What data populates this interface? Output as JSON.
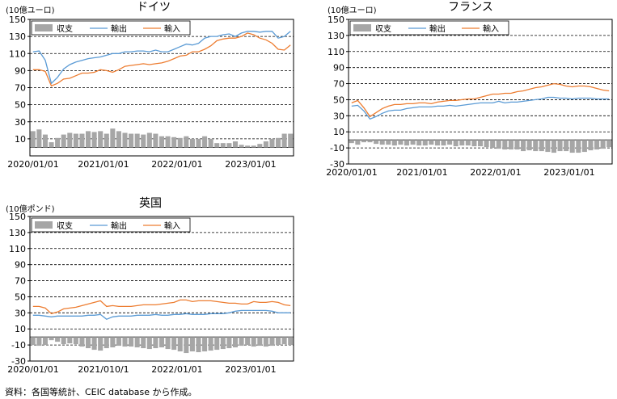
{
  "source": "資料：各国等統計、CEIC database から作成。",
  "colors": {
    "bar": "#a6a6a6",
    "export": "#5b9bd5",
    "import": "#ed7d31",
    "axis": "#000000"
  },
  "chart_data": [
    {
      "type": "bar+line",
      "title": "ドイツ",
      "unit": "(10億ユーロ)",
      "ylim": [
        -10,
        150
      ],
      "yticks": [
        10,
        30,
        50,
        70,
        90,
        110,
        130,
        150
      ],
      "xticks": [
        "2020/01/01",
        "2021/01/01",
        "2022/01/01",
        "2023/01/01"
      ],
      "legend": [
        "収支",
        "輸出",
        "輸入"
      ],
      "series": [
        {
          "name": "収支",
          "kind": "bar",
          "values": [
            19,
            21,
            15,
            6,
            11,
            15,
            17,
            16,
            16,
            19,
            18,
            19,
            16,
            22,
            19,
            17,
            16,
            16,
            15,
            17,
            16,
            13,
            13,
            12,
            11,
            13,
            10,
            10,
            13,
            10,
            5,
            5,
            5,
            7,
            3,
            2,
            2,
            4,
            7,
            10,
            11,
            16,
            16
          ]
        },
        {
          "name": "輸出",
          "kind": "line",
          "values": [
            112,
            113,
            102,
            75,
            82,
            92,
            97,
            100,
            102,
            104,
            105,
            106,
            108,
            110,
            110,
            112,
            112,
            113,
            113,
            112,
            114,
            112,
            112,
            115,
            118,
            121,
            120,
            122,
            128,
            130,
            130,
            132,
            133,
            130,
            134,
            136,
            136,
            135,
            136,
            136,
            128,
            130,
            136
          ]
        },
        {
          "name": "輸入",
          "kind": "line",
          "values": [
            91,
            91,
            89,
            72,
            75,
            80,
            81,
            84,
            87,
            87,
            88,
            91,
            90,
            88,
            91,
            95,
            96,
            97,
            98,
            97,
            98,
            99,
            101,
            104,
            107,
            108,
            112,
            112,
            115,
            119,
            125,
            127,
            128,
            128,
            130,
            134,
            132,
            128,
            126,
            122,
            115,
            114,
            120
          ]
        }
      ]
    },
    {
      "type": "bar+line",
      "title": "フランス",
      "unit": "(10億ユーロ)",
      "ylim": [
        -30,
        150
      ],
      "yticks": [
        -30,
        -10,
        10,
        30,
        50,
        70,
        90,
        110,
        130,
        150
      ],
      "xticks": [
        "2020/01/01",
        "2021/01/01",
        "2022/01/01",
        "2023/01/01"
      ],
      "legend": [
        "収支",
        "輸出",
        "輸入"
      ],
      "series": [
        {
          "name": "収支",
          "kind": "bar",
          "values": [
            -4,
            -6,
            -3,
            -3,
            -5,
            -6,
            -6,
            -7,
            -6,
            -7,
            -6,
            -7,
            -7,
            -6,
            -7,
            -7,
            -6,
            -8,
            -7,
            -7,
            -8,
            -8,
            -9,
            -10,
            -11,
            -12,
            -12,
            -12,
            -14,
            -13,
            -14,
            -14,
            -15,
            -16,
            -14,
            -14,
            -16,
            -16,
            -15,
            -13,
            -12,
            -11,
            -9
          ]
        },
        {
          "name": "輸出",
          "kind": "line",
          "values": [
            42,
            43,
            36,
            26,
            29,
            33,
            36,
            37,
            37,
            39,
            40,
            41,
            41,
            41,
            42,
            42,
            43,
            42,
            43,
            44,
            45,
            46,
            46,
            46,
            48,
            46,
            47,
            47,
            48,
            49,
            50,
            51,
            53,
            53,
            52,
            52,
            51,
            52,
            52,
            52,
            51,
            51,
            51
          ]
        },
        {
          "name": "輸入",
          "kind": "line",
          "values": [
            46,
            49,
            40,
            29,
            34,
            39,
            42,
            44,
            44,
            45,
            45,
            46,
            46,
            45,
            47,
            48,
            49,
            49,
            50,
            51,
            51,
            53,
            55,
            57,
            57,
            58,
            58,
            60,
            61,
            63,
            65,
            66,
            68,
            70,
            69,
            67,
            66,
            67,
            67,
            66,
            64,
            62,
            61
          ]
        }
      ]
    },
    {
      "type": "bar+line",
      "title": "英国",
      "unit": "(10億ポンド)",
      "ylim": [
        -30,
        150
      ],
      "yticks": [
        -30,
        -10,
        10,
        30,
        50,
        70,
        90,
        110,
        130,
        150
      ],
      "xticks": [
        "2020/01/01",
        "2021/010/1",
        "2022/01/01",
        "2023/01/01"
      ],
      "legend": [
        "収支",
        "輸出",
        "輸入"
      ],
      "series": [
        {
          "name": "収支",
          "kind": "bar",
          "values": [
            -10,
            -11,
            -10,
            -4,
            -6,
            -9,
            -8,
            -9,
            -12,
            -14,
            -16,
            -17,
            -14,
            -13,
            -11,
            -12,
            -12,
            -13,
            -14,
            -15,
            -14,
            -13,
            -15,
            -16,
            -18,
            -20,
            -18,
            -19,
            -18,
            -17,
            -16,
            -15,
            -14,
            -13,
            -11,
            -10,
            -12,
            -11,
            -12,
            -11,
            -10,
            -9,
            -10
          ]
        },
        {
          "name": "輸出",
          "kind": "line",
          "values": [
            27,
            27,
            26,
            25,
            26,
            26,
            26,
            26,
            26,
            27,
            27,
            28,
            22,
            25,
            26,
            26,
            26,
            27,
            27,
            27,
            28,
            27,
            27,
            28,
            28,
            29,
            28,
            28,
            28,
            29,
            29,
            29,
            30,
            32,
            33,
            33,
            33,
            33,
            33,
            32,
            30,
            30,
            30
          ]
        },
        {
          "name": "輸入",
          "kind": "line",
          "values": [
            38,
            38,
            36,
            29,
            31,
            35,
            36,
            37,
            39,
            41,
            43,
            45,
            38,
            39,
            38,
            38,
            38,
            39,
            40,
            40,
            40,
            41,
            42,
            43,
            46,
            46,
            44,
            45,
            45,
            45,
            44,
            43,
            42,
            42,
            41,
            41,
            44,
            43,
            43,
            44,
            43,
            40,
            39
          ]
        }
      ]
    }
  ]
}
